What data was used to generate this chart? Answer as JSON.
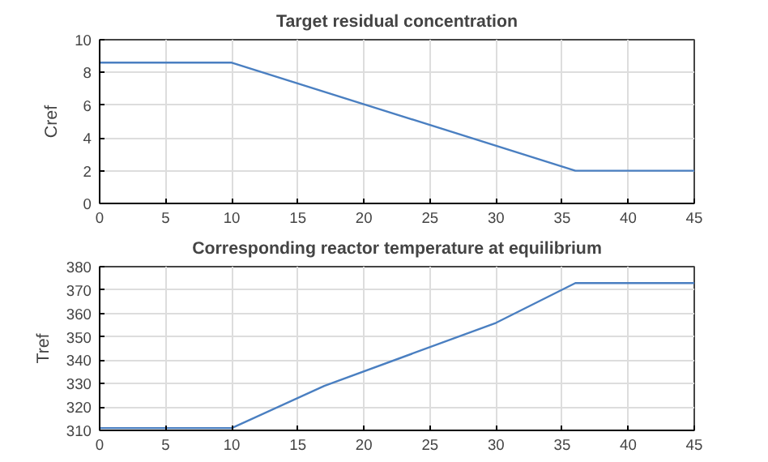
{
  "chart_data": [
    {
      "type": "line",
      "title": "Target residual concentration",
      "ylabel": "Cref",
      "x": [
        0,
        10,
        36,
        45
      ],
      "series": [
        {
          "color": "#4a7fc1",
          "values": [
            8.6,
            8.6,
            2,
            2
          ]
        }
      ],
      "xlim": [
        0,
        45
      ],
      "xticks": [
        0,
        5,
        10,
        15,
        20,
        25,
        30,
        35,
        40,
        45
      ],
      "ylim": [
        0,
        10
      ],
      "yticks": [
        0,
        2,
        4,
        6,
        8,
        10
      ],
      "grid": true
    },
    {
      "type": "line",
      "title": "Corresponding reactor temperature at equilibrium",
      "ylabel": "Tref",
      "x": [
        0,
        10,
        17,
        30,
        36,
        45
      ],
      "series": [
        {
          "color": "#4a7fc1",
          "values": [
            311,
            311,
            329,
            356,
            373,
            373
          ]
        }
      ],
      "xlim": [
        0,
        45
      ],
      "xticks": [
        0,
        5,
        10,
        15,
        20,
        25,
        30,
        35,
        40,
        45
      ],
      "ylim": [
        310,
        380
      ],
      "yticks": [
        310,
        320,
        330,
        340,
        350,
        360,
        370,
        380
      ],
      "grid": true
    }
  ]
}
